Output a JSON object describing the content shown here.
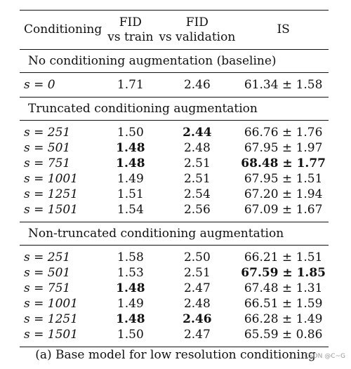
{
  "header": {
    "col1": "Conditioning",
    "col2_line1": "FID",
    "col2_line2": "vs train",
    "col3_line1": "FID",
    "col3_line2": "vs validation",
    "col4": "IS"
  },
  "sections": [
    {
      "title": "No conditioning augmentation (baseline)",
      "rows": [
        {
          "s_label": "s = 0",
          "fid_train": "1.71",
          "fid_val": "2.46",
          "is": "61.34 ± 1.58",
          "bold": []
        }
      ]
    },
    {
      "title": "Truncated conditioning augmentation",
      "rows": [
        {
          "s_label": "s = 251",
          "fid_train": "1.50",
          "fid_val": "2.44",
          "is": "66.76 ± 1.76",
          "bold": [
            "fid_val"
          ]
        },
        {
          "s_label": "s = 501",
          "fid_train": "1.48",
          "fid_val": "2.48",
          "is": "67.95 ± 1.97",
          "bold": [
            "fid_train"
          ]
        },
        {
          "s_label": "s = 751",
          "fid_train": "1.48",
          "fid_val": "2.51",
          "is": "68.48 ± 1.77",
          "bold": [
            "fid_train",
            "is"
          ]
        },
        {
          "s_label": "s = 1001",
          "fid_train": "1.49",
          "fid_val": "2.51",
          "is": "67.95 ± 1.51",
          "bold": []
        },
        {
          "s_label": "s = 1251",
          "fid_train": "1.51",
          "fid_val": "2.54",
          "is": "67.20 ± 1.94",
          "bold": []
        },
        {
          "s_label": "s = 1501",
          "fid_train": "1.54",
          "fid_val": "2.56",
          "is": "67.09 ± 1.67",
          "bold": []
        }
      ]
    },
    {
      "title": "Non-truncated conditioning augmentation",
      "rows": [
        {
          "s_label": "s = 251",
          "fid_train": "1.58",
          "fid_val": "2.50",
          "is": "66.21 ± 1.51",
          "bold": []
        },
        {
          "s_label": "s = 501",
          "fid_train": "1.53",
          "fid_val": "2.51",
          "is": "67.59 ± 1.85",
          "bold": [
            "is"
          ]
        },
        {
          "s_label": "s = 751",
          "fid_train": "1.48",
          "fid_val": "2.47",
          "is": "67.48 ± 1.31",
          "bold": [
            "fid_train"
          ]
        },
        {
          "s_label": "s = 1001",
          "fid_train": "1.49",
          "fid_val": "2.48",
          "is": "66.51 ± 1.59",
          "bold": []
        },
        {
          "s_label": "s = 1251",
          "fid_train": "1.48",
          "fid_val": "2.46",
          "is": "66.28 ± 1.49",
          "bold": [
            "fid_train",
            "fid_val"
          ]
        },
        {
          "s_label": "s = 1501",
          "fid_train": "1.50",
          "fid_val": "2.47",
          "is": "65.59 ± 0.86",
          "bold": []
        }
      ]
    }
  ],
  "caption": "(a) Base model for low resolution conditioning",
  "watermark": "CSDN @C~G"
}
